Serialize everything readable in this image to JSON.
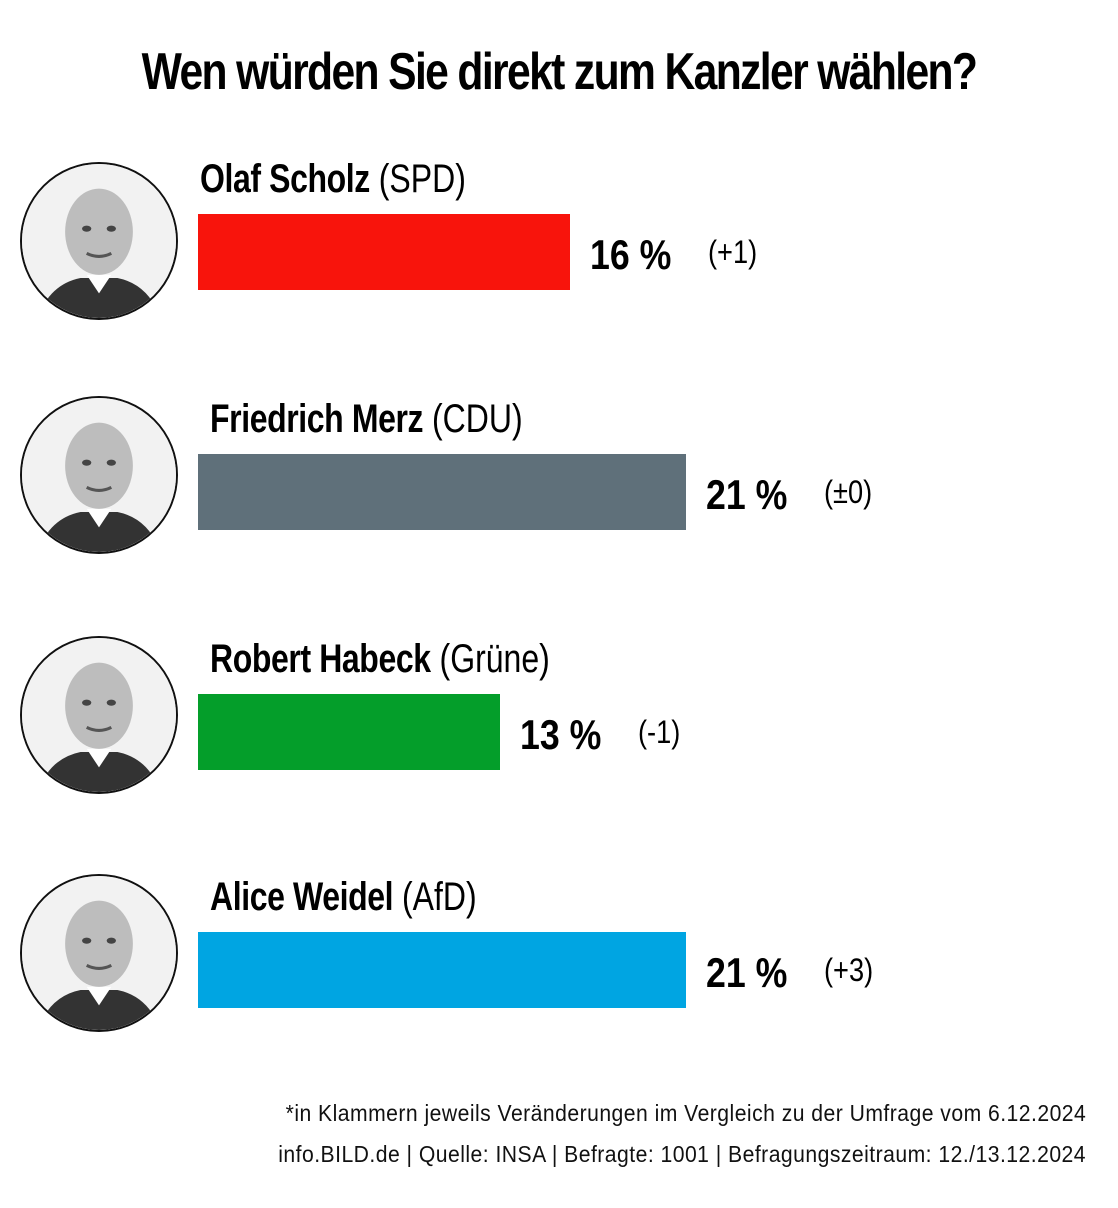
{
  "chart_data": {
    "type": "bar",
    "orientation": "horizontal",
    "title": "Wen würden Sie direkt zum Kanzler wählen?",
    "xlabel": "",
    "ylabel": "",
    "unit": "%",
    "xlim": [
      0,
      21
    ],
    "categories": [
      "Olaf Scholz (SPD)",
      "Friedrich Merz (CDU)",
      "Robert Habeck (Grüne)",
      "Alice Weidel (AfD)"
    ],
    "values": [
      16,
      21,
      13,
      21
    ],
    "candidates": [
      {
        "name": "Olaf Scholz",
        "party": "(SPD)",
        "value": 16,
        "value_label": "16 %",
        "change_label": "(+1)",
        "color": "#f8140c",
        "portrait": "portrait-olaf-scholz"
      },
      {
        "name": "Friedrich Merz",
        "party": "(CDU)",
        "value": 21,
        "value_label": "21 %",
        "change_label": "(±0)",
        "color": "#5f707a",
        "portrait": "portrait-friedrich-merz"
      },
      {
        "name": "Robert Habeck",
        "party": "(Grüne)",
        "value": 13,
        "value_label": "13 %",
        "change_label": "(-1)",
        "color": "#049e2a",
        "portrait": "portrait-robert-habeck"
      },
      {
        "name": "Alice Weidel",
        "party": "(AfD)",
        "value": 21,
        "value_label": "21 %",
        "change_label": "(+3)",
        "color": "#00a5e2",
        "portrait": "portrait-alice-weidel"
      }
    ],
    "grid": false,
    "legend": "none"
  },
  "footnote": "*in Klammern jeweils Veränderungen im Vergleich zu der Umfrage vom 6.12.2024",
  "source": "info.BILD.de | Quelle: INSA | Befragte: 1001 | Befragungszeitraum: 12./13.12.2024"
}
